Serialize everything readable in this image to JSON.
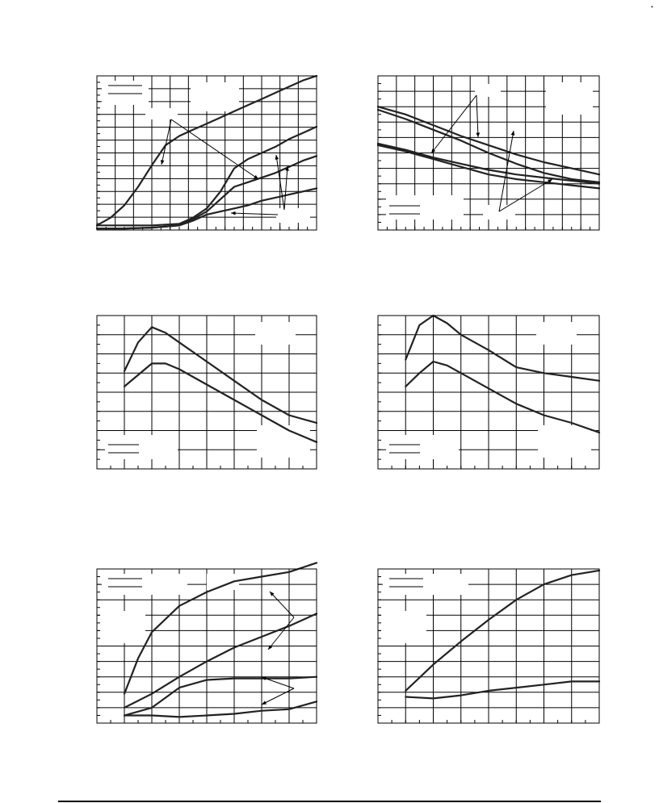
{
  "page": {
    "corner_mark": "•"
  },
  "colors": {
    "line": "#222222",
    "grid": "#000000",
    "background": "#ffffff"
  },
  "chart_data": [
    {
      "id": "top-left",
      "type": "line",
      "title": "",
      "xlabel": "",
      "ylabel": "",
      "xlim": [
        0,
        8
      ],
      "ylim": [
        0,
        10
      ],
      "grid": true,
      "legend": "top-left",
      "series": [
        {
          "values": [
            [
              0,
              0.3
            ],
            [
              0.5,
              0.8
            ],
            [
              1,
              1.6
            ],
            [
              1.5,
              2.8
            ],
            [
              2,
              4.2
            ],
            [
              2.5,
              5.5
            ],
            [
              3,
              6.1
            ],
            [
              3.5,
              6.5
            ],
            [
              4,
              6.9
            ],
            [
              4.5,
              7.3
            ],
            [
              5,
              7.7
            ],
            [
              5.5,
              8.1
            ],
            [
              6,
              8.5
            ],
            [
              6.5,
              8.9
            ],
            [
              7,
              9.3
            ],
            [
              7.5,
              9.7
            ],
            [
              8,
              10.0
            ]
          ]
        },
        {
          "values": [
            [
              0,
              0.3
            ],
            [
              1,
              0.3
            ],
            [
              2,
              0.3
            ],
            [
              3,
              0.4
            ],
            [
              3.5,
              0.8
            ],
            [
              4,
              1.4
            ],
            [
              4.5,
              2.5
            ],
            [
              5,
              4.0
            ],
            [
              5.5,
              4.6
            ],
            [
              6,
              5.0
            ],
            [
              6.5,
              5.4
            ],
            [
              7,
              5.9
            ],
            [
              7.5,
              6.3
            ],
            [
              8,
              6.7
            ]
          ]
        },
        {
          "values": [
            [
              0,
              0.1
            ],
            [
              1,
              0.1
            ],
            [
              2,
              0.15
            ],
            [
              3,
              0.3
            ],
            [
              3.5,
              0.7
            ],
            [
              4,
              1.2
            ],
            [
              4.5,
              2.0
            ],
            [
              5,
              2.8
            ],
            [
              5.5,
              3.1
            ],
            [
              6,
              3.4
            ],
            [
              6.5,
              3.7
            ],
            [
              7,
              4.1
            ],
            [
              7.5,
              4.5
            ],
            [
              8,
              4.8
            ]
          ]
        },
        {
          "values": [
            [
              0,
              0.1
            ],
            [
              1,
              0.1
            ],
            [
              2,
              0.15
            ],
            [
              3,
              0.3
            ],
            [
              3.5,
              0.6
            ],
            [
              4,
              1.0
            ],
            [
              4.5,
              1.2
            ],
            [
              5,
              1.4
            ],
            [
              5.5,
              1.6
            ],
            [
              6,
              1.9
            ],
            [
              6.5,
              2.1
            ],
            [
              7,
              2.3
            ],
            [
              7.5,
              2.5
            ],
            [
              8,
              2.7
            ]
          ]
        }
      ]
    },
    {
      "id": "top-right",
      "type": "line",
      "title": "",
      "xlabel": "",
      "ylabel": "",
      "xlim": [
        0,
        8
      ],
      "ylim": [
        0,
        10
      ],
      "grid": true,
      "legend": "bottom-left",
      "series": [
        {
          "values": [
            [
              0,
              8.0
            ],
            [
              1,
              7.5
            ],
            [
              2,
              6.8
            ],
            [
              3,
              6.1
            ],
            [
              4,
              5.5
            ],
            [
              5,
              4.9
            ],
            [
              6,
              4.4
            ],
            [
              7,
              4.0
            ],
            [
              8,
              3.6
            ]
          ]
        },
        {
          "values": [
            [
              0,
              7.8
            ],
            [
              1,
              7.2
            ],
            [
              2,
              6.5
            ],
            [
              3,
              5.8
            ],
            [
              4,
              5.0
            ],
            [
              5,
              4.3
            ],
            [
              6,
              3.7
            ],
            [
              7,
              3.3
            ],
            [
              8,
              3.1
            ]
          ]
        },
        {
          "values": [
            [
              0,
              5.6
            ],
            [
              1,
              5.2
            ],
            [
              2,
              4.7
            ],
            [
              3,
              4.3
            ],
            [
              4,
              3.9
            ],
            [
              5,
              3.6
            ],
            [
              6,
              3.4
            ],
            [
              7,
              3.2
            ],
            [
              8,
              3.0
            ]
          ]
        },
        {
          "values": [
            [
              0,
              5.5
            ],
            [
              1,
              5.1
            ],
            [
              2,
              4.6
            ],
            [
              3,
              4.1
            ],
            [
              4,
              3.6
            ],
            [
              5,
              3.3
            ],
            [
              6,
              3.1
            ],
            [
              7,
              2.9
            ],
            [
              8,
              2.7
            ]
          ]
        }
      ]
    },
    {
      "id": "middle-left",
      "type": "line",
      "title": "",
      "xlabel": "",
      "ylabel": "",
      "xlim": [
        0,
        8
      ],
      "ylim": [
        0,
        8
      ],
      "grid": true,
      "legend": "bottom-left",
      "series": [
        {
          "values": [
            [
              1,
              5.1
            ],
            [
              1.5,
              6.6
            ],
            [
              2,
              7.4
            ],
            [
              2.5,
              7.1
            ],
            [
              3,
              6.6
            ],
            [
              4,
              5.6
            ],
            [
              5,
              4.6
            ],
            [
              6,
              3.6
            ],
            [
              7,
              2.8
            ],
            [
              8,
              2.4
            ]
          ]
        },
        {
          "values": [
            [
              1,
              4.3
            ],
            [
              1.5,
              4.9
            ],
            [
              2,
              5.5
            ],
            [
              2.5,
              5.5
            ],
            [
              3,
              5.2
            ],
            [
              4,
              4.4
            ],
            [
              5,
              3.6
            ],
            [
              6,
              2.8
            ],
            [
              7,
              2.0
            ],
            [
              8,
              1.4
            ]
          ]
        }
      ]
    },
    {
      "id": "middle-right",
      "type": "line",
      "title": "",
      "xlabel": "",
      "ylabel": "",
      "xlim": [
        0,
        8
      ],
      "ylim": [
        0,
        8
      ],
      "grid": true,
      "legend": "bottom-left",
      "series": [
        {
          "values": [
            [
              1,
              5.7
            ],
            [
              1.5,
              7.5
            ],
            [
              2,
              8.0
            ],
            [
              2.5,
              7.6
            ],
            [
              3,
              7.0
            ],
            [
              4,
              6.2
            ],
            [
              5,
              5.3
            ],
            [
              6,
              5.0
            ],
            [
              7,
              4.8
            ],
            [
              8,
              4.6
            ]
          ]
        },
        {
          "values": [
            [
              1,
              4.3
            ],
            [
              1.5,
              5.0
            ],
            [
              2,
              5.6
            ],
            [
              2.5,
              5.4
            ],
            [
              3,
              5.0
            ],
            [
              4,
              4.2
            ],
            [
              5,
              3.4
            ],
            [
              6,
              2.8
            ],
            [
              7,
              2.4
            ],
            [
              8,
              1.9
            ]
          ]
        }
      ]
    },
    {
      "id": "bottom-left",
      "type": "line",
      "title": "",
      "xlabel": "",
      "ylabel": "",
      "xlim": [
        0,
        8
      ],
      "ylim": [
        0,
        10
      ],
      "grid": true,
      "legend": "top-left",
      "series": [
        {
          "values": [
            [
              1,
              1.9
            ],
            [
              1.5,
              4.2
            ],
            [
              2,
              5.9
            ],
            [
              3,
              7.6
            ],
            [
              4,
              8.5
            ],
            [
              5,
              9.2
            ],
            [
              6,
              9.5
            ],
            [
              7,
              9.8
            ],
            [
              8,
              10.4
            ]
          ]
        },
        {
          "values": [
            [
              1,
              1.0
            ],
            [
              2,
              1.9
            ],
            [
              3,
              3.0
            ],
            [
              4,
              4.0
            ],
            [
              5,
              4.9
            ],
            [
              6,
              5.6
            ],
            [
              7,
              6.3
            ],
            [
              8,
              7.1
            ]
          ]
        },
        {
          "values": [
            [
              1,
              0.5
            ],
            [
              2,
              1.0
            ],
            [
              3,
              2.3
            ],
            [
              4,
              2.8
            ],
            [
              5,
              2.9
            ],
            [
              6,
              2.9
            ],
            [
              7,
              2.9
            ],
            [
              8,
              3.0
            ]
          ]
        },
        {
          "values": [
            [
              1,
              0.5
            ],
            [
              2,
              0.5
            ],
            [
              3,
              0.4
            ],
            [
              4,
              0.5
            ],
            [
              5,
              0.6
            ],
            [
              6,
              0.8
            ],
            [
              7,
              0.9
            ],
            [
              8,
              1.4
            ]
          ]
        }
      ]
    },
    {
      "id": "bottom-right",
      "type": "line",
      "title": "",
      "xlabel": "",
      "ylabel": "",
      "xlim": [
        0,
        8
      ],
      "ylim": [
        0,
        10
      ],
      "grid": true,
      "legend": "top-left",
      "series": [
        {
          "values": [
            [
              1,
              2.1
            ],
            [
              2,
              3.8
            ],
            [
              3,
              5.3
            ],
            [
              4,
              6.7
            ],
            [
              5,
              8.0
            ],
            [
              6,
              9.0
            ],
            [
              7,
              9.6
            ],
            [
              8,
              9.9
            ]
          ]
        },
        {
          "values": [
            [
              1,
              1.7
            ],
            [
              2,
              1.6
            ],
            [
              3,
              1.8
            ],
            [
              4,
              2.1
            ],
            [
              5,
              2.3
            ],
            [
              6,
              2.5
            ],
            [
              7,
              2.7
            ],
            [
              8,
              2.7
            ]
          ]
        }
      ]
    }
  ]
}
